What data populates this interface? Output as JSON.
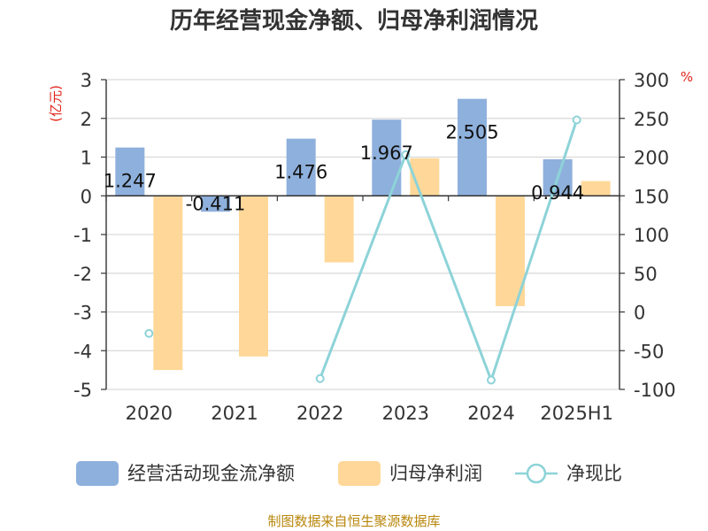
{
  "title": "历年经营现金净额、归母净利润情况",
  "source": "制图数据来自恒生聚源数据库",
  "colors": {
    "cash_flow": "#8eb0dc",
    "net_profit": "#ffd899",
    "ratio": "#8dd3d8",
    "axis": "#333333",
    "grid": "#d9d9d9",
    "unit": "#e1251b",
    "source": "#b8860b"
  },
  "chart_data": {
    "type": "bar",
    "categories": [
      "2020",
      "2021",
      "2022",
      "2023",
      "2024",
      "2025H1"
    ],
    "left_axis": {
      "unit": "(亿元)",
      "ylim": [
        -5,
        3
      ],
      "ticks": [
        "3",
        "2",
        "1",
        "0",
        "-1",
        "-2",
        "-3",
        "-4",
        "-5"
      ],
      "tick_values": [
        3,
        2,
        1,
        0,
        -1,
        -2,
        -3,
        -4,
        -5
      ]
    },
    "right_axis": {
      "unit": "%",
      "ylim": [
        -100,
        300
      ],
      "ticks": [
        "300",
        "250",
        "200",
        "150",
        "100",
        "50",
        "0",
        "-50",
        "-100"
      ],
      "tick_values": [
        300,
        250,
        200,
        150,
        100,
        50,
        0,
        -50,
        -100
      ]
    },
    "grid": true,
    "legend_position": "bottom",
    "series": [
      {
        "name": "经营活动现金流净额",
        "type": "bar",
        "axis": "left",
        "values": [
          1.247,
          -0.411,
          1.476,
          1.967,
          2.505,
          0.944
        ],
        "labels": [
          "1.247",
          "-0.411",
          "1.476",
          "1.967",
          "2.505",
          "0.944"
        ]
      },
      {
        "name": "归母净利润",
        "type": "bar",
        "axis": "left",
        "values": [
          -4.5,
          -4.15,
          -1.72,
          0.97,
          -2.85,
          0.38
        ]
      },
      {
        "name": "净现比",
        "type": "line",
        "axis": "right",
        "values": [
          -27.7,
          null,
          -86.0,
          203.0,
          -88.0,
          248.0
        ]
      }
    ]
  }
}
